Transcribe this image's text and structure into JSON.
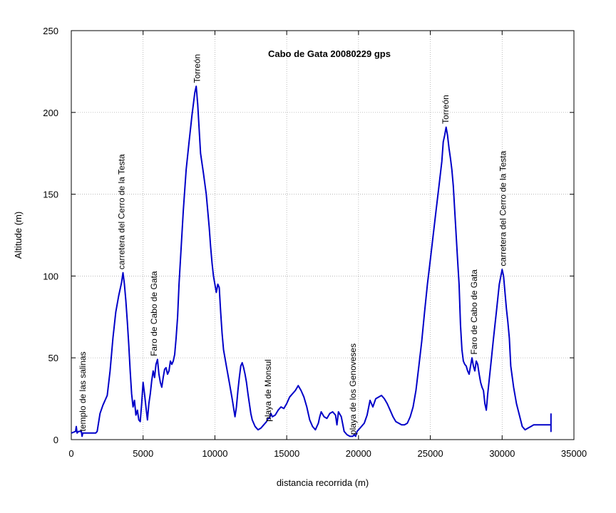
{
  "chart_data": {
    "type": "line",
    "title": "Cabo de Gata 20080229 gps",
    "xlabel": "distancia recorrida (m)",
    "ylabel": "Altitude (m)",
    "xlim": [
      0,
      35000
    ],
    "ylim": [
      0,
      250
    ],
    "xticks": [
      0,
      5000,
      10000,
      15000,
      20000,
      25000,
      30000,
      35000
    ],
    "yticks": [
      0,
      50,
      100,
      150,
      200,
      250
    ],
    "grid": true,
    "line_color": "#0000c8",
    "series": [
      {
        "x": [
          0,
          300,
          350,
          400,
          500,
          700,
          750,
          800,
          1000,
          1500,
          1700,
          1800,
          2000,
          2200,
          2500,
          2700,
          2900,
          3100,
          3300,
          3500,
          3600,
          3700,
          3800,
          3900,
          4000,
          4100,
          4200,
          4300,
          4400,
          4500,
          4600,
          4700,
          4800,
          4900,
          5000,
          5100,
          5200,
          5300,
          5400,
          5500,
          5600,
          5700,
          5800,
          5900,
          6000,
          6100,
          6200,
          6300,
          6400,
          6500,
          6600,
          6700,
          6800,
          6900,
          7000,
          7100,
          7200,
          7300,
          7400,
          7500,
          7600,
          7700,
          7800,
          8000,
          8200,
          8400,
          8600,
          8700,
          8800,
          8900,
          9000,
          9200,
          9400,
          9600,
          9700,
          9800,
          9900,
          10000,
          10100,
          10200,
          10300,
          10400,
          10500,
          10600,
          10800,
          11000,
          11200,
          11400,
          11500,
          11600,
          11700,
          11800,
          11900,
          12000,
          12100,
          12200,
          12300,
          12400,
          12500,
          12600,
          12800,
          13000,
          13200,
          13400,
          13600,
          13700,
          13800,
          13900,
          14000,
          14200,
          14400,
          14600,
          14800,
          15000,
          15200,
          15400,
          15600,
          15800,
          16000,
          16200,
          16400,
          16600,
          16800,
          17000,
          17200,
          17300,
          17400,
          17600,
          17800,
          18000,
          18200,
          18300,
          18400,
          18500,
          18600,
          18800,
          19000,
          19200,
          19400,
          19600,
          19700,
          19800,
          19900,
          20000,
          20200,
          20400,
          20600,
          20800,
          21000,
          21200,
          21400,
          21600,
          21800,
          22000,
          22200,
          22400,
          22600,
          22800,
          23000,
          23200,
          23400,
          23600,
          23800,
          24000,
          24200,
          24400,
          24600,
          24800,
          25000,
          25200,
          25400,
          25600,
          25800,
          25900,
          26000,
          26100,
          26200,
          26300,
          26400,
          26500,
          26600,
          26700,
          26800,
          26900,
          27000,
          27100,
          27200,
          27300,
          27400,
          27500,
          27600,
          27700,
          27800,
          27900,
          28000,
          28100,
          28200,
          28300,
          28400,
          28500,
          28600,
          28700,
          28800,
          28900,
          29000,
          29200,
          29400,
          29600,
          29800,
          30000,
          30100,
          30200,
          30300,
          30400,
          30500,
          30600,
          30800,
          31000,
          31200,
          31400,
          31600,
          31800,
          32000,
          32200,
          32400,
          32600,
          32800,
          33000,
          33200,
          33400,
          33400,
          33400
        ],
        "y": [
          4,
          5,
          8,
          4,
          5,
          5,
          2,
          4,
          4,
          4,
          4,
          5,
          16,
          21,
          27,
          42,
          62,
          78,
          88,
          96,
          102,
          95,
          85,
          72,
          58,
          42,
          28,
          20,
          24,
          15,
          18,
          12,
          11,
          22,
          35,
          28,
          20,
          12,
          22,
          28,
          36,
          42,
          38,
          46,
          49,
          40,
          35,
          32,
          38,
          43,
          44,
          40,
          42,
          48,
          46,
          48,
          52,
          62,
          75,
          95,
          110,
          125,
          140,
          165,
          182,
          198,
          212,
          216,
          205,
          190,
          175,
          163,
          150,
          130,
          118,
          108,
          100,
          95,
          90,
          95,
          93,
          78,
          65,
          55,
          45,
          35,
          25,
          14,
          20,
          30,
          38,
          45,
          47,
          44,
          40,
          35,
          28,
          22,
          16,
          12,
          8,
          6,
          7,
          9,
          11,
          13,
          13,
          16,
          14,
          15,
          18,
          20,
          19,
          22,
          26,
          28,
          30,
          33,
          30,
          26,
          20,
          12,
          8,
          6,
          10,
          14,
          17,
          14,
          13,
          16,
          17,
          16,
          15,
          9,
          17,
          14,
          5,
          3,
          2,
          2,
          3,
          2,
          5,
          6,
          8,
          10,
          15,
          24,
          20,
          25,
          26,
          27,
          25,
          22,
          18,
          14,
          11,
          10,
          9,
          9,
          10,
          14,
          20,
          30,
          45,
          60,
          78,
          95,
          110,
          125,
          140,
          155,
          170,
          182,
          186,
          191,
          186,
          178,
          172,
          165,
          155,
          140,
          125,
          110,
          95,
          70,
          55,
          48,
          46,
          45,
          42,
          40,
          45,
          50,
          45,
          42,
          48,
          46,
          40,
          35,
          32,
          30,
          22,
          18,
          28,
          45,
          62,
          78,
          95,
          104,
          100,
          90,
          80,
          72,
          62,
          45,
          32,
          22,
          15,
          8,
          6,
          7,
          8,
          9,
          9,
          9,
          9,
          9,
          9,
          9,
          5,
          16
        ]
      }
    ],
    "annotations": [
      {
        "text": "templo de las salinas",
        "x": 1000,
        "y": 5
      },
      {
        "text": "carretera del Cerro de la Testa",
        "x": 3700,
        "y": 104
      },
      {
        "text": "Faro de Cabo de Gata",
        "x": 5950,
        "y": 51
      },
      {
        "text": "Torreón",
        "x": 8950,
        "y": 218
      },
      {
        "text": "playa de Monsul",
        "x": 13900,
        "y": 11
      },
      {
        "text": "playa de los Genoveses",
        "x": 19800,
        "y": 3
      },
      {
        "text": "Torreón",
        "x": 26250,
        "y": 193
      },
      {
        "text": "Faro de Cabo de Gata",
        "x": 28250,
        "y": 52
      },
      {
        "text": "carretera del Cerro de la Testa",
        "x": 30250,
        "y": 106
      }
    ]
  }
}
